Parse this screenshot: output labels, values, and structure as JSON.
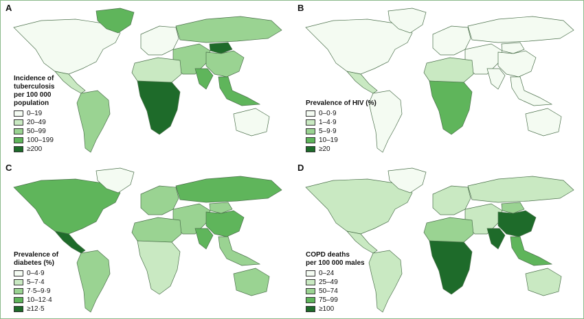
{
  "colors": [
    "#f4fbf2",
    "#c9e9c2",
    "#9ad392",
    "#5fb55b",
    "#1e6b2a"
  ],
  "panels": [
    {
      "letter": "A",
      "legend_title": "Incidence of\ntuberculosis\nper 100 000\npopulation",
      "items": [
        "0–19",
        "20–49",
        "50–99",
        "100–199",
        "≥200"
      ],
      "levels": {
        "na": 0,
        "greenland": 3,
        "ca": 1,
        "sa": 2,
        "eu": 0,
        "ru": 2,
        "mn": 4,
        "asia": 2,
        "cn": 2,
        "in": 3,
        "sea": 3,
        "nafr": 1,
        "safr": 4,
        "oc": 0
      }
    },
    {
      "letter": "B",
      "legend_title": "Prevalence of HIV (%)",
      "items": [
        "0–0·9",
        "1–4·9",
        "5–9·9",
        "10–19",
        "≥20"
      ],
      "levels": {
        "na": 0,
        "greenland": 0,
        "ca": 1,
        "sa": 0,
        "eu": 0,
        "ru": 0,
        "mn": 0,
        "asia": 0,
        "cn": 0,
        "in": 0,
        "sea": 0,
        "nafr": 1,
        "safr": 3,
        "oc": 0
      }
    },
    {
      "letter": "C",
      "legend_title": "Prevalence of\ndiabetes (%)",
      "items": [
        "0–4·9",
        "5–7·4",
        "7·5–9·9",
        "10–12·4",
        "≥12·5"
      ],
      "levels": {
        "na": 3,
        "greenland": 0,
        "ca": 4,
        "sa": 2,
        "eu": 2,
        "ru": 3,
        "mn": 2,
        "asia": 2,
        "cn": 3,
        "in": 3,
        "sea": 2,
        "nafr": 2,
        "safr": 1,
        "oc": 2
      }
    },
    {
      "letter": "D",
      "legend_title": "COPD deaths\nper 100 000 males",
      "items": [
        "0–24",
        "25–49",
        "50–74",
        "75–99",
        "≥100"
      ],
      "levels": {
        "na": 1,
        "greenland": 0,
        "ca": 1,
        "sa": 1,
        "eu": 1,
        "ru": 1,
        "mn": 2,
        "asia": 1,
        "cn": 4,
        "in": 4,
        "sea": 3,
        "nafr": 2,
        "safr": 4,
        "oc": 1
      }
    }
  ]
}
